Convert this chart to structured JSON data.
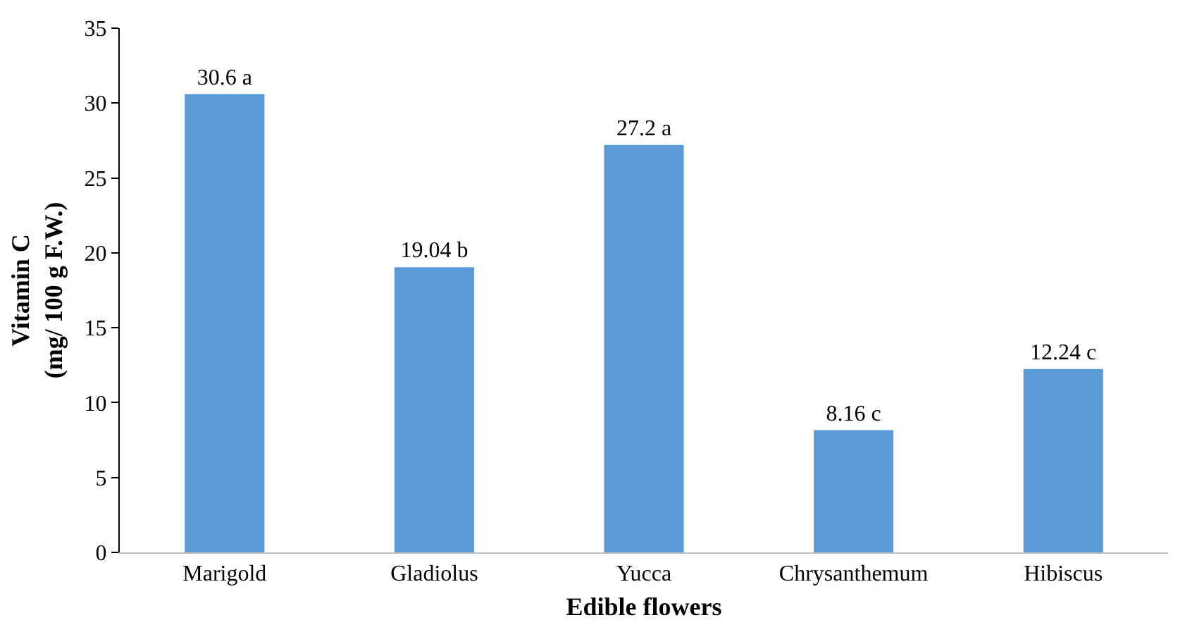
{
  "chart_data": {
    "type": "bar",
    "xlabel": "Edible flowers",
    "ylabel": "Vitamin C\n(mg/ 100 g F.W.)",
    "categories": [
      "Marigold",
      "Gladiolus",
      "Yucca",
      "Chrysanthemum",
      "Hibiscus"
    ],
    "values": [
      30.6,
      19.04,
      27.2,
      8.16,
      12.24
    ],
    "value_labels": [
      "30.6 a",
      "19.04 b",
      "27.2 a",
      "8.16 c",
      "12.24 c"
    ],
    "color": "#5b9bd5",
    "ylim": [
      0,
      35
    ],
    "yticks": [
      0,
      5,
      10,
      15,
      20,
      25,
      30,
      35
    ],
    "legend": false
  }
}
